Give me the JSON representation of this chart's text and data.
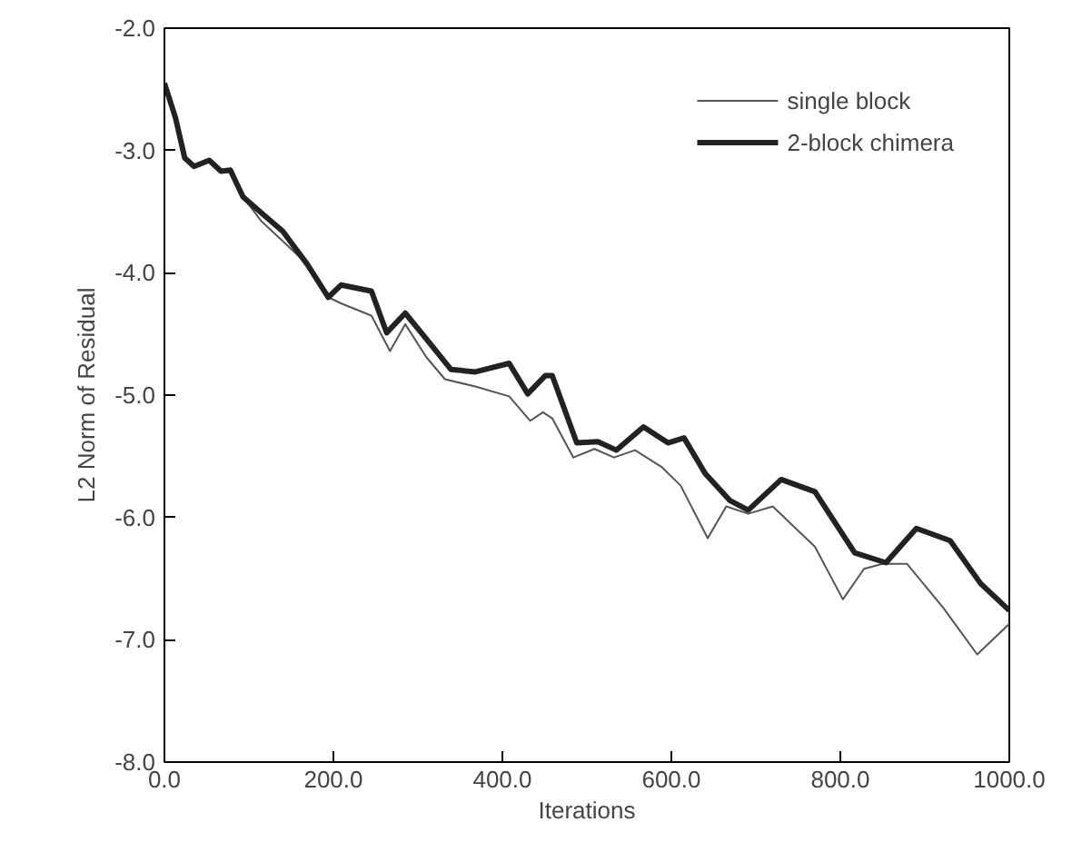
{
  "chart_data": {
    "type": "line",
    "xlabel": "Iterations",
    "ylabel": "L2 Norm of Residual",
    "xlim": [
      0,
      1000
    ],
    "ylim": [
      -8,
      -2
    ],
    "xticks": [
      {
        "value": 0,
        "label": "0.0"
      },
      {
        "value": 200,
        "label": "200.0"
      },
      {
        "value": 400,
        "label": "400.0"
      },
      {
        "value": 600,
        "label": "600.0"
      },
      {
        "value": 800,
        "label": "800.0"
      },
      {
        "value": 1000,
        "label": "1000.0"
      }
    ],
    "yticks": [
      {
        "value": -8,
        "label": "-8.0"
      },
      {
        "value": -7,
        "label": "-7.0"
      },
      {
        "value": -6,
        "label": "-6.0"
      },
      {
        "value": -5,
        "label": "-5.0"
      },
      {
        "value": -4,
        "label": "-4.0"
      },
      {
        "value": -3,
        "label": "-3.0"
      },
      {
        "value": -2,
        "label": "-2.0"
      }
    ],
    "grid": false,
    "legend": "top right",
    "marker": "none",
    "series": [
      {
        "name": "single block",
        "color": "#555555",
        "x": [
          0,
          13,
          24,
          35,
          53,
          67,
          78,
          93,
          115,
          143,
          169,
          194,
          209,
          245,
          267,
          285,
          310,
          332,
          368,
          408,
          433,
          448,
          459,
          484,
          509,
          532,
          557,
          589,
          611,
          643,
          665,
          691,
          720,
          770,
          803,
          828,
          850,
          879,
          922,
          962,
          1000
        ],
        "values": [
          -2.45,
          -2.73,
          -3.06,
          -3.13,
          -3.08,
          -3.17,
          -3.16,
          -3.38,
          -3.58,
          -3.76,
          -3.93,
          -4.2,
          -4.25,
          -4.35,
          -4.64,
          -4.42,
          -4.69,
          -4.87,
          -4.93,
          -5.01,
          -5.21,
          -5.14,
          -5.19,
          -5.51,
          -5.44,
          -5.51,
          -5.45,
          -5.59,
          -5.74,
          -6.17,
          -5.91,
          -5.97,
          -5.91,
          -6.24,
          -6.67,
          -6.42,
          -6.38,
          -6.38,
          -6.74,
          -7.12,
          -6.87
        ]
      },
      {
        "name": "2-block chimera",
        "color": "#222222",
        "x": [
          0,
          13,
          24,
          35,
          53,
          67,
          78,
          93,
          118,
          140,
          169,
          194,
          209,
          245,
          263,
          285,
          310,
          339,
          368,
          408,
          430,
          451,
          459,
          488,
          513,
          535,
          567,
          596,
          615,
          640,
          669,
          691,
          730,
          770,
          817,
          854,
          890,
          930,
          966,
          1000
        ],
        "values": [
          -2.45,
          -2.73,
          -3.06,
          -3.13,
          -3.08,
          -3.17,
          -3.16,
          -3.38,
          -3.53,
          -3.66,
          -3.93,
          -4.2,
          -4.1,
          -4.15,
          -4.49,
          -4.33,
          -4.54,
          -4.79,
          -4.81,
          -4.74,
          -4.99,
          -4.84,
          -4.84,
          -5.39,
          -5.38,
          -5.45,
          -5.26,
          -5.39,
          -5.35,
          -5.64,
          -5.86,
          -5.94,
          -5.69,
          -5.79,
          -6.29,
          -6.37,
          -6.09,
          -6.19,
          -6.54,
          -6.76
        ]
      }
    ]
  }
}
